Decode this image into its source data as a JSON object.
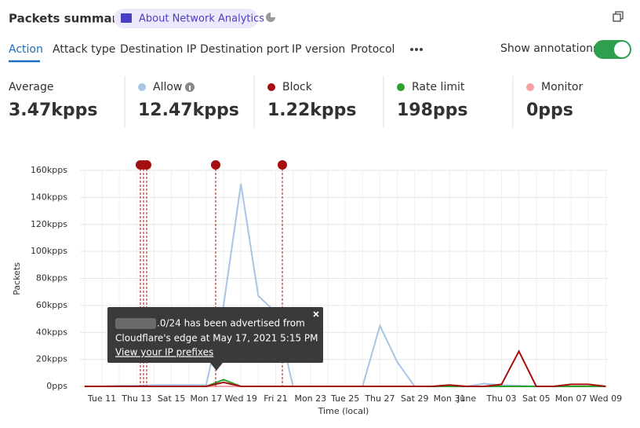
{
  "header": {
    "title": "Packets summary",
    "badge": "About Network Analytics"
  },
  "tabs": [
    "Action",
    "Attack type",
    "Destination IP",
    "Destination port",
    "IP version",
    "Protocol"
  ],
  "toggle_label": "Show annotations",
  "stats": [
    {
      "label": "Average",
      "value": "3.47kpps"
    },
    {
      "label": "Allow",
      "value": "12.47kpps"
    },
    {
      "label": "Block",
      "value": "1.22kpps"
    },
    {
      "label": "Rate limit",
      "value": "198pps"
    },
    {
      "label": "Monitor",
      "value": "0pps"
    }
  ],
  "tooltip": {
    "line1": ".0/24 has been advertised from",
    "line2": "Cloudflare's edge at May 17, 2021 5:15 PM",
    "link": "View your IP prefixes"
  },
  "chart_data": {
    "type": "line",
    "y_label": "Packets",
    "x_label": "Time (local)",
    "categories": [
      null,
      "Tue 11",
      null,
      "Thu 13",
      null,
      "Sat 15",
      null,
      "Mon 17",
      null,
      "Wed 19",
      null,
      "Fri 21",
      null,
      "Mon 23",
      null,
      "Tue 25",
      null,
      "Thu 27",
      null,
      "Sat 29",
      null,
      "Mon 31",
      "June",
      null,
      "Thu 03",
      null,
      "Sat 05",
      null,
      "Mon 07",
      null,
      "Wed 09"
    ],
    "series": [
      {
        "color": "#f4a3a3",
        "values": [
          0,
          0,
          0,
          0,
          0,
          0,
          0,
          0,
          0,
          0,
          0,
          0,
          0,
          0,
          0,
          0,
          0,
          0,
          0,
          0,
          0,
          0,
          0,
          0,
          0,
          0,
          0,
          0,
          0,
          0,
          0
        ]
      },
      {
        "color": "#a9c4e6",
        "values": [
          0,
          0,
          500,
          500,
          1000,
          1000,
          1000,
          1000,
          60000,
          150000,
          67000,
          55000,
          0,
          0,
          0,
          0,
          0,
          45000,
          18000,
          0,
          0,
          0,
          0,
          2000,
          1000,
          500,
          0,
          0,
          0,
          0,
          0
        ]
      },
      {
        "color": "#2ca02c",
        "values": [
          0,
          0,
          0,
          0,
          0,
          0,
          0,
          0,
          5000,
          0,
          0,
          0,
          0,
          0,
          0,
          0,
          0,
          0,
          0,
          0,
          0,
          0,
          0,
          0,
          0,
          0,
          0,
          0,
          0,
          0,
          0
        ]
      },
      {
        "color": "#a50e0e",
        "values": [
          0,
          0,
          0,
          0,
          0,
          0,
          0,
          0,
          3000,
          0,
          0,
          0,
          0,
          0,
          0,
          0,
          0,
          0,
          0,
          0,
          0,
          1000,
          0,
          0,
          1500,
          26000,
          0,
          0,
          1500,
          1500,
          0
        ]
      }
    ],
    "ylim": [
      0,
      160000
    ],
    "yticks": [
      {
        "value": 0,
        "label": "0pps"
      },
      {
        "value": 20000,
        "label": "20kpps"
      },
      {
        "value": 40000,
        "label": "40kpps"
      },
      {
        "value": 60000,
        "label": "60kpps"
      },
      {
        "value": 80000,
        "label": "80kpps"
      },
      {
        "value": 100000,
        "label": "100kpps"
      },
      {
        "value": 120000,
        "label": "120kpps"
      },
      {
        "value": 140000,
        "label": "140kpps"
      },
      {
        "value": 160000,
        "label": "160kpps"
      }
    ],
    "grid": true
  }
}
